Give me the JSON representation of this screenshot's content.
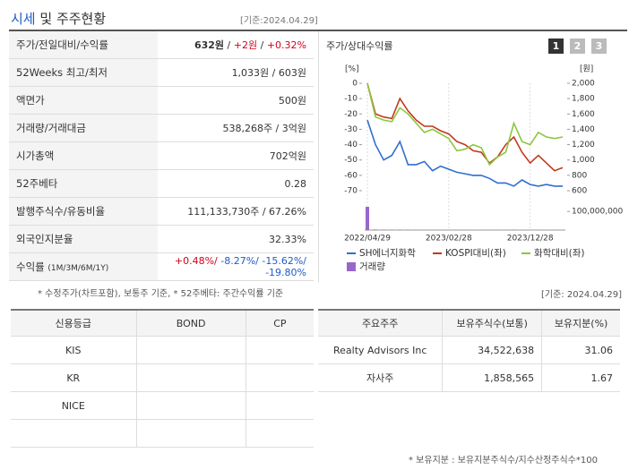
{
  "header": {
    "title_main": "시세",
    "title_rest": "및 주주현황",
    "date": "[기준:2024.04.29]"
  },
  "summary": {
    "rows": [
      {
        "label": "주가/전일대비/수익률",
        "parts": [
          "632원",
          "/",
          "+2원",
          "/",
          "+0.32%"
        ]
      },
      {
        "label": "52Weeks 최고/최저",
        "value": "1,033원 / 603원"
      },
      {
        "label": "액면가",
        "value": "500원"
      },
      {
        "label": "거래량/거래대금",
        "value": "538,268주 / 3억원"
      },
      {
        "label": "시가총액",
        "value": "702억원"
      },
      {
        "label": "52주베타",
        "value": "0.28"
      },
      {
        "label": "발행주식수/유동비율",
        "value": "111,133,730주 / 67.26%"
      },
      {
        "label": "외국인지분율",
        "value": "32.33%"
      },
      {
        "label": "수익률",
        "sublabel": "(1M/3M/6M/1Y)",
        "parts": [
          "+0.48%/",
          "-8.27%/",
          "-15.62%/",
          "-19.80%"
        ]
      }
    ],
    "note": "* 수정주가(차트포함), 보통주 기준, * 52주베타: 주간수익률 기준"
  },
  "chart_data": {
    "type": "line",
    "title": "주가/상대수익률",
    "tabs": [
      "1",
      "2",
      "3"
    ],
    "y_unit": "[%]",
    "y2_unit": "[원]",
    "categories": [
      "2022/04/29",
      null,
      null,
      null,
      null,
      null,
      null,
      null,
      null,
      null,
      "2023/02/28",
      null,
      null,
      null,
      null,
      null,
      null,
      null,
      null,
      null,
      "2023/12/28",
      null,
      null,
      null,
      null
    ],
    "ylim": [
      -70,
      0
    ],
    "yticks": [
      0,
      -10,
      -20,
      -30,
      -40,
      -50,
      -60,
      -70
    ],
    "y2lim": [
      600,
      2000
    ],
    "y2ticks": [
      {
        "value": 2000,
        "label": "2,000"
      },
      {
        "value": 1800,
        "label": "1,800"
      },
      {
        "value": 1600,
        "label": "1,600"
      },
      {
        "value": 1400,
        "label": "1,400"
      },
      {
        "value": 1200,
        "label": "1,200"
      },
      {
        "value": 1000,
        "label": "1,000"
      },
      {
        "value": 800,
        "label": "800"
      },
      {
        "value": 600,
        "label": "600"
      }
    ],
    "volume_ylim": [
      0,
      130000000
    ],
    "volume_yticks": [
      {
        "value": 100000000,
        "label": "100,000,000"
      }
    ],
    "series": [
      {
        "name": "SH에너지화학",
        "color": "#2f6fd0",
        "values": [
          -24,
          -40,
          -50,
          -47,
          -38,
          -53,
          -53,
          -51,
          -57,
          -54,
          -56,
          -58,
          -59,
          -60,
          -60,
          -62,
          -65,
          -65,
          -67,
          -63,
          -66,
          -67,
          -66,
          -67,
          -67
        ]
      },
      {
        "name": "KOSPI대비(좌)",
        "color": "#c0391b",
        "values": [
          0,
          -20,
          -22,
          -23,
          -10,
          -18,
          -24,
          -28,
          -28,
          -31,
          -33,
          -38,
          -40,
          -44,
          -45,
          -52,
          -48,
          -40,
          -35,
          -45,
          -52,
          -47,
          -52,
          -57,
          -55
        ]
      },
      {
        "name": "화학대비(좌)",
        "color": "#8dc63f",
        "values": [
          0,
          -22,
          -24,
          -25,
          -16,
          -20,
          -26,
          -32,
          -30,
          -33,
          -36,
          -44,
          -43,
          -40,
          -42,
          -53,
          -48,
          -45,
          -26,
          -38,
          -40,
          -32,
          -35,
          -36,
          -35
        ]
      },
      {
        "name": "거래량",
        "color": "#9966cc",
        "type": "bar",
        "values": [
          125000000,
          3000000,
          2000000,
          1500000,
          2500000,
          1500000,
          1000000,
          1200000,
          1000000,
          900000,
          1100000,
          1000000,
          900000,
          800000,
          1000000,
          900000,
          1200000,
          1000000,
          1500000,
          1000000,
          900000,
          1000000,
          800000,
          900000,
          1000000
        ]
      }
    ]
  },
  "ratings": {
    "header": [
      "신용등급",
      "BOND",
      "CP"
    ],
    "rows": [
      "KIS",
      "KR",
      "NICE"
    ]
  },
  "holders": {
    "date": "[기준: 2024.04.29]",
    "header": [
      "주요주주",
      "보유주식수(보통)",
      "보유지분(%)"
    ],
    "rows": [
      [
        "Realty Advisors Inc",
        "34,522,638",
        "31.06"
      ],
      [
        "자사주",
        "1,858,565",
        "1.67"
      ]
    ],
    "note": "* 보유지분 : 보유지분주식수/지수산정주식수*100"
  }
}
